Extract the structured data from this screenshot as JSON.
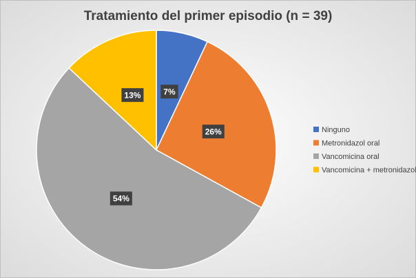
{
  "chart_data": {
    "type": "pie",
    "title": "Tratamiento del primer episodio (n = 39)",
    "categories": [
      "Ninguno",
      "Metronidazol oral",
      "Vancomicina oral",
      "Vancomicina + metronidazol"
    ],
    "values": [
      7,
      26,
      54,
      13
    ],
    "value_labels": [
      "7%",
      "26%",
      "54%",
      "13%"
    ],
    "colors": [
      "#4472c4",
      "#ed7d31",
      "#a5a5a5",
      "#ffc000"
    ],
    "legend": "right"
  }
}
